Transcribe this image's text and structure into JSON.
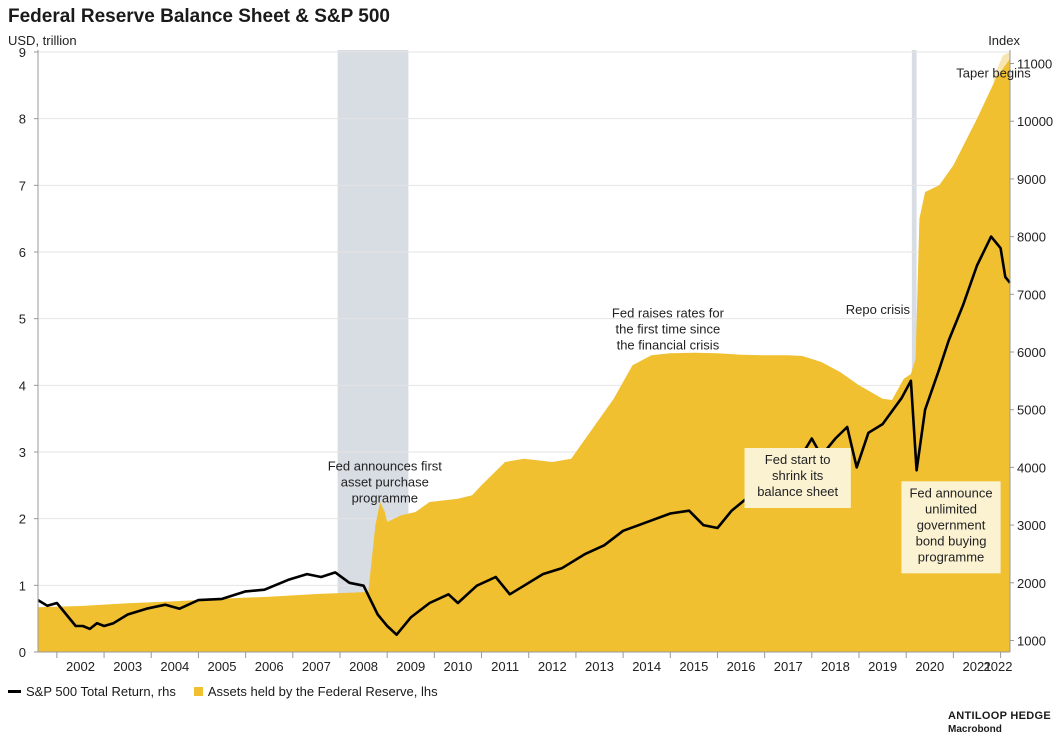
{
  "title": "Federal Reserve Balance Sheet & S&P 500",
  "left_axis_unit": "USD, trillion",
  "right_axis_unit": "Index",
  "legend": {
    "sp500": "S&P 500 Total Return, rhs",
    "assets": "Assets held by the Federal Reserve, lhs"
  },
  "source": {
    "line1": "ANTILOOP HEDGE",
    "line2": "Macrobond"
  },
  "colors": {
    "assets": "#f0c030",
    "sp500": "#000000",
    "recession": "#d8dce3",
    "taper": "#f8e6b0",
    "note_box": "#fbf2d2"
  },
  "chart_data": {
    "type": "line",
    "x_range": [
      2001.6,
      2022.2
    ],
    "x_ticks": [
      "2002",
      "2003",
      "2004",
      "2005",
      "2006",
      "2007",
      "2008",
      "2009",
      "2010",
      "2011",
      "2012",
      "2013",
      "2014",
      "2015",
      "2016",
      "2017",
      "2018",
      "2019",
      "2020",
      "2021",
      "2022"
    ],
    "y_left": {
      "label": "USD, trillion",
      "range": [
        0,
        9
      ],
      "ticks": [
        0,
        1,
        2,
        3,
        4,
        5,
        6,
        7,
        8,
        9
      ]
    },
    "y_right": {
      "label": "Index",
      "range": [
        800,
        11200
      ],
      "ticks": [
        1000,
        2000,
        3000,
        4000,
        5000,
        6000,
        7000,
        8000,
        9000,
        10000,
        11000
      ]
    },
    "shaded_periods": [
      {
        "type": "recession",
        "start": 2007.95,
        "end": 2009.45
      },
      {
        "type": "recession",
        "start": 2020.12,
        "end": 2020.22
      }
    ],
    "series": [
      {
        "name": "Assets held by the Federal Reserve, lhs",
        "type": "area",
        "axis": "left",
        "points": [
          [
            2001.6,
            0.67
          ],
          [
            2002.5,
            0.69
          ],
          [
            2003.5,
            0.73
          ],
          [
            2004.5,
            0.76
          ],
          [
            2005.5,
            0.8
          ],
          [
            2006.5,
            0.83
          ],
          [
            2007.5,
            0.87
          ],
          [
            2008.6,
            0.9
          ],
          [
            2008.75,
            1.9
          ],
          [
            2008.85,
            2.25
          ],
          [
            2008.95,
            2.1
          ],
          [
            2009.0,
            1.95
          ],
          [
            2009.3,
            2.05
          ],
          [
            2009.6,
            2.1
          ],
          [
            2009.9,
            2.25
          ],
          [
            2010.5,
            2.3
          ],
          [
            2010.8,
            2.35
          ],
          [
            2011.0,
            2.5
          ],
          [
            2011.5,
            2.85
          ],
          [
            2011.9,
            2.9
          ],
          [
            2012.5,
            2.85
          ],
          [
            2012.9,
            2.9
          ],
          [
            2013.3,
            3.3
          ],
          [
            2013.8,
            3.8
          ],
          [
            2014.2,
            4.3
          ],
          [
            2014.6,
            4.45
          ],
          [
            2015.0,
            4.48
          ],
          [
            2015.5,
            4.49
          ],
          [
            2016.0,
            4.48
          ],
          [
            2016.5,
            4.46
          ],
          [
            2017.0,
            4.45
          ],
          [
            2017.5,
            4.45
          ],
          [
            2017.8,
            4.44
          ],
          [
            2018.2,
            4.35
          ],
          [
            2018.6,
            4.2
          ],
          [
            2019.0,
            4.0
          ],
          [
            2019.5,
            3.8
          ],
          [
            2019.7,
            3.78
          ],
          [
            2019.95,
            4.1
          ],
          [
            2020.1,
            4.17
          ],
          [
            2020.2,
            4.4
          ],
          [
            2020.28,
            6.5
          ],
          [
            2020.4,
            6.9
          ],
          [
            2020.7,
            7.0
          ],
          [
            2021.0,
            7.3
          ],
          [
            2021.5,
            8.0
          ],
          [
            2021.9,
            8.6
          ],
          [
            2022.2,
            8.9
          ]
        ]
      },
      {
        "name": "S&P 500 Total Return, rhs",
        "type": "line",
        "axis": "right",
        "points": [
          [
            2001.6,
            1700
          ],
          [
            2001.8,
            1600
          ],
          [
            2002.0,
            1650
          ],
          [
            2002.2,
            1450
          ],
          [
            2002.4,
            1250
          ],
          [
            2002.55,
            1250
          ],
          [
            2002.7,
            1200
          ],
          [
            2002.85,
            1300
          ],
          [
            2003.0,
            1250
          ],
          [
            2003.2,
            1300
          ],
          [
            2003.5,
            1450
          ],
          [
            2003.9,
            1550
          ],
          [
            2004.3,
            1620
          ],
          [
            2004.6,
            1550
          ],
          [
            2005.0,
            1700
          ],
          [
            2005.5,
            1720
          ],
          [
            2006.0,
            1850
          ],
          [
            2006.4,
            1880
          ],
          [
            2006.9,
            2050
          ],
          [
            2007.3,
            2150
          ],
          [
            2007.6,
            2100
          ],
          [
            2007.9,
            2180
          ],
          [
            2008.2,
            2000
          ],
          [
            2008.5,
            1950
          ],
          [
            2008.8,
            1450
          ],
          [
            2009.0,
            1250
          ],
          [
            2009.2,
            1100
          ],
          [
            2009.5,
            1400
          ],
          [
            2009.9,
            1650
          ],
          [
            2010.3,
            1800
          ],
          [
            2010.5,
            1650
          ],
          [
            2010.9,
            1950
          ],
          [
            2011.3,
            2100
          ],
          [
            2011.6,
            1800
          ],
          [
            2011.9,
            1950
          ],
          [
            2012.3,
            2150
          ],
          [
            2012.7,
            2250
          ],
          [
            2013.2,
            2500
          ],
          [
            2013.6,
            2650
          ],
          [
            2014.0,
            2900
          ],
          [
            2014.5,
            3050
          ],
          [
            2015.0,
            3200
          ],
          [
            2015.4,
            3250
          ],
          [
            2015.7,
            3000
          ],
          [
            2016.0,
            2950
          ],
          [
            2016.3,
            3250
          ],
          [
            2016.6,
            3450
          ],
          [
            2016.9,
            3550
          ],
          [
            2017.3,
            3850
          ],
          [
            2017.7,
            4100
          ],
          [
            2018.0,
            4500
          ],
          [
            2018.2,
            4200
          ],
          [
            2018.5,
            4500
          ],
          [
            2018.75,
            4700
          ],
          [
            2018.95,
            4000
          ],
          [
            2019.2,
            4600
          ],
          [
            2019.5,
            4750
          ],
          [
            2019.9,
            5200
          ],
          [
            2020.1,
            5500
          ],
          [
            2020.22,
            3950
          ],
          [
            2020.4,
            5000
          ],
          [
            2020.7,
            5700
          ],
          [
            2020.9,
            6200
          ],
          [
            2021.2,
            6800
          ],
          [
            2021.5,
            7500
          ],
          [
            2021.8,
            8000
          ],
          [
            2022.0,
            7800
          ],
          [
            2022.1,
            7300
          ],
          [
            2022.2,
            7200
          ]
        ]
      }
    ],
    "annotations": [
      {
        "lines": [
          "Fed announces first",
          "asset purchase",
          "programme"
        ],
        "x": 2008.95,
        "y": 2.9,
        "boxed": false
      },
      {
        "lines": [
          "Fed raises rates for",
          "the first time since",
          "the financial crisis"
        ],
        "x": 2014.95,
        "y": 5.2,
        "boxed": false
      },
      {
        "lines": [
          "Repo crisis"
        ],
        "x": 2019.4,
        "y": 5.25,
        "boxed": false
      },
      {
        "lines": [
          "Taper begins"
        ],
        "x": 2021.85,
        "y": 8.8,
        "boxed": false
      },
      {
        "lines": [
          "Fed start to",
          "shrink its",
          "balance sheet"
        ],
        "x": 2017.7,
        "y": 3.0,
        "boxed": true
      },
      {
        "lines": [
          "Fed announce",
          "unlimited",
          "government",
          "bond buying",
          "programme"
        ],
        "x": 2020.95,
        "y": 2.5,
        "boxed": true
      }
    ]
  }
}
